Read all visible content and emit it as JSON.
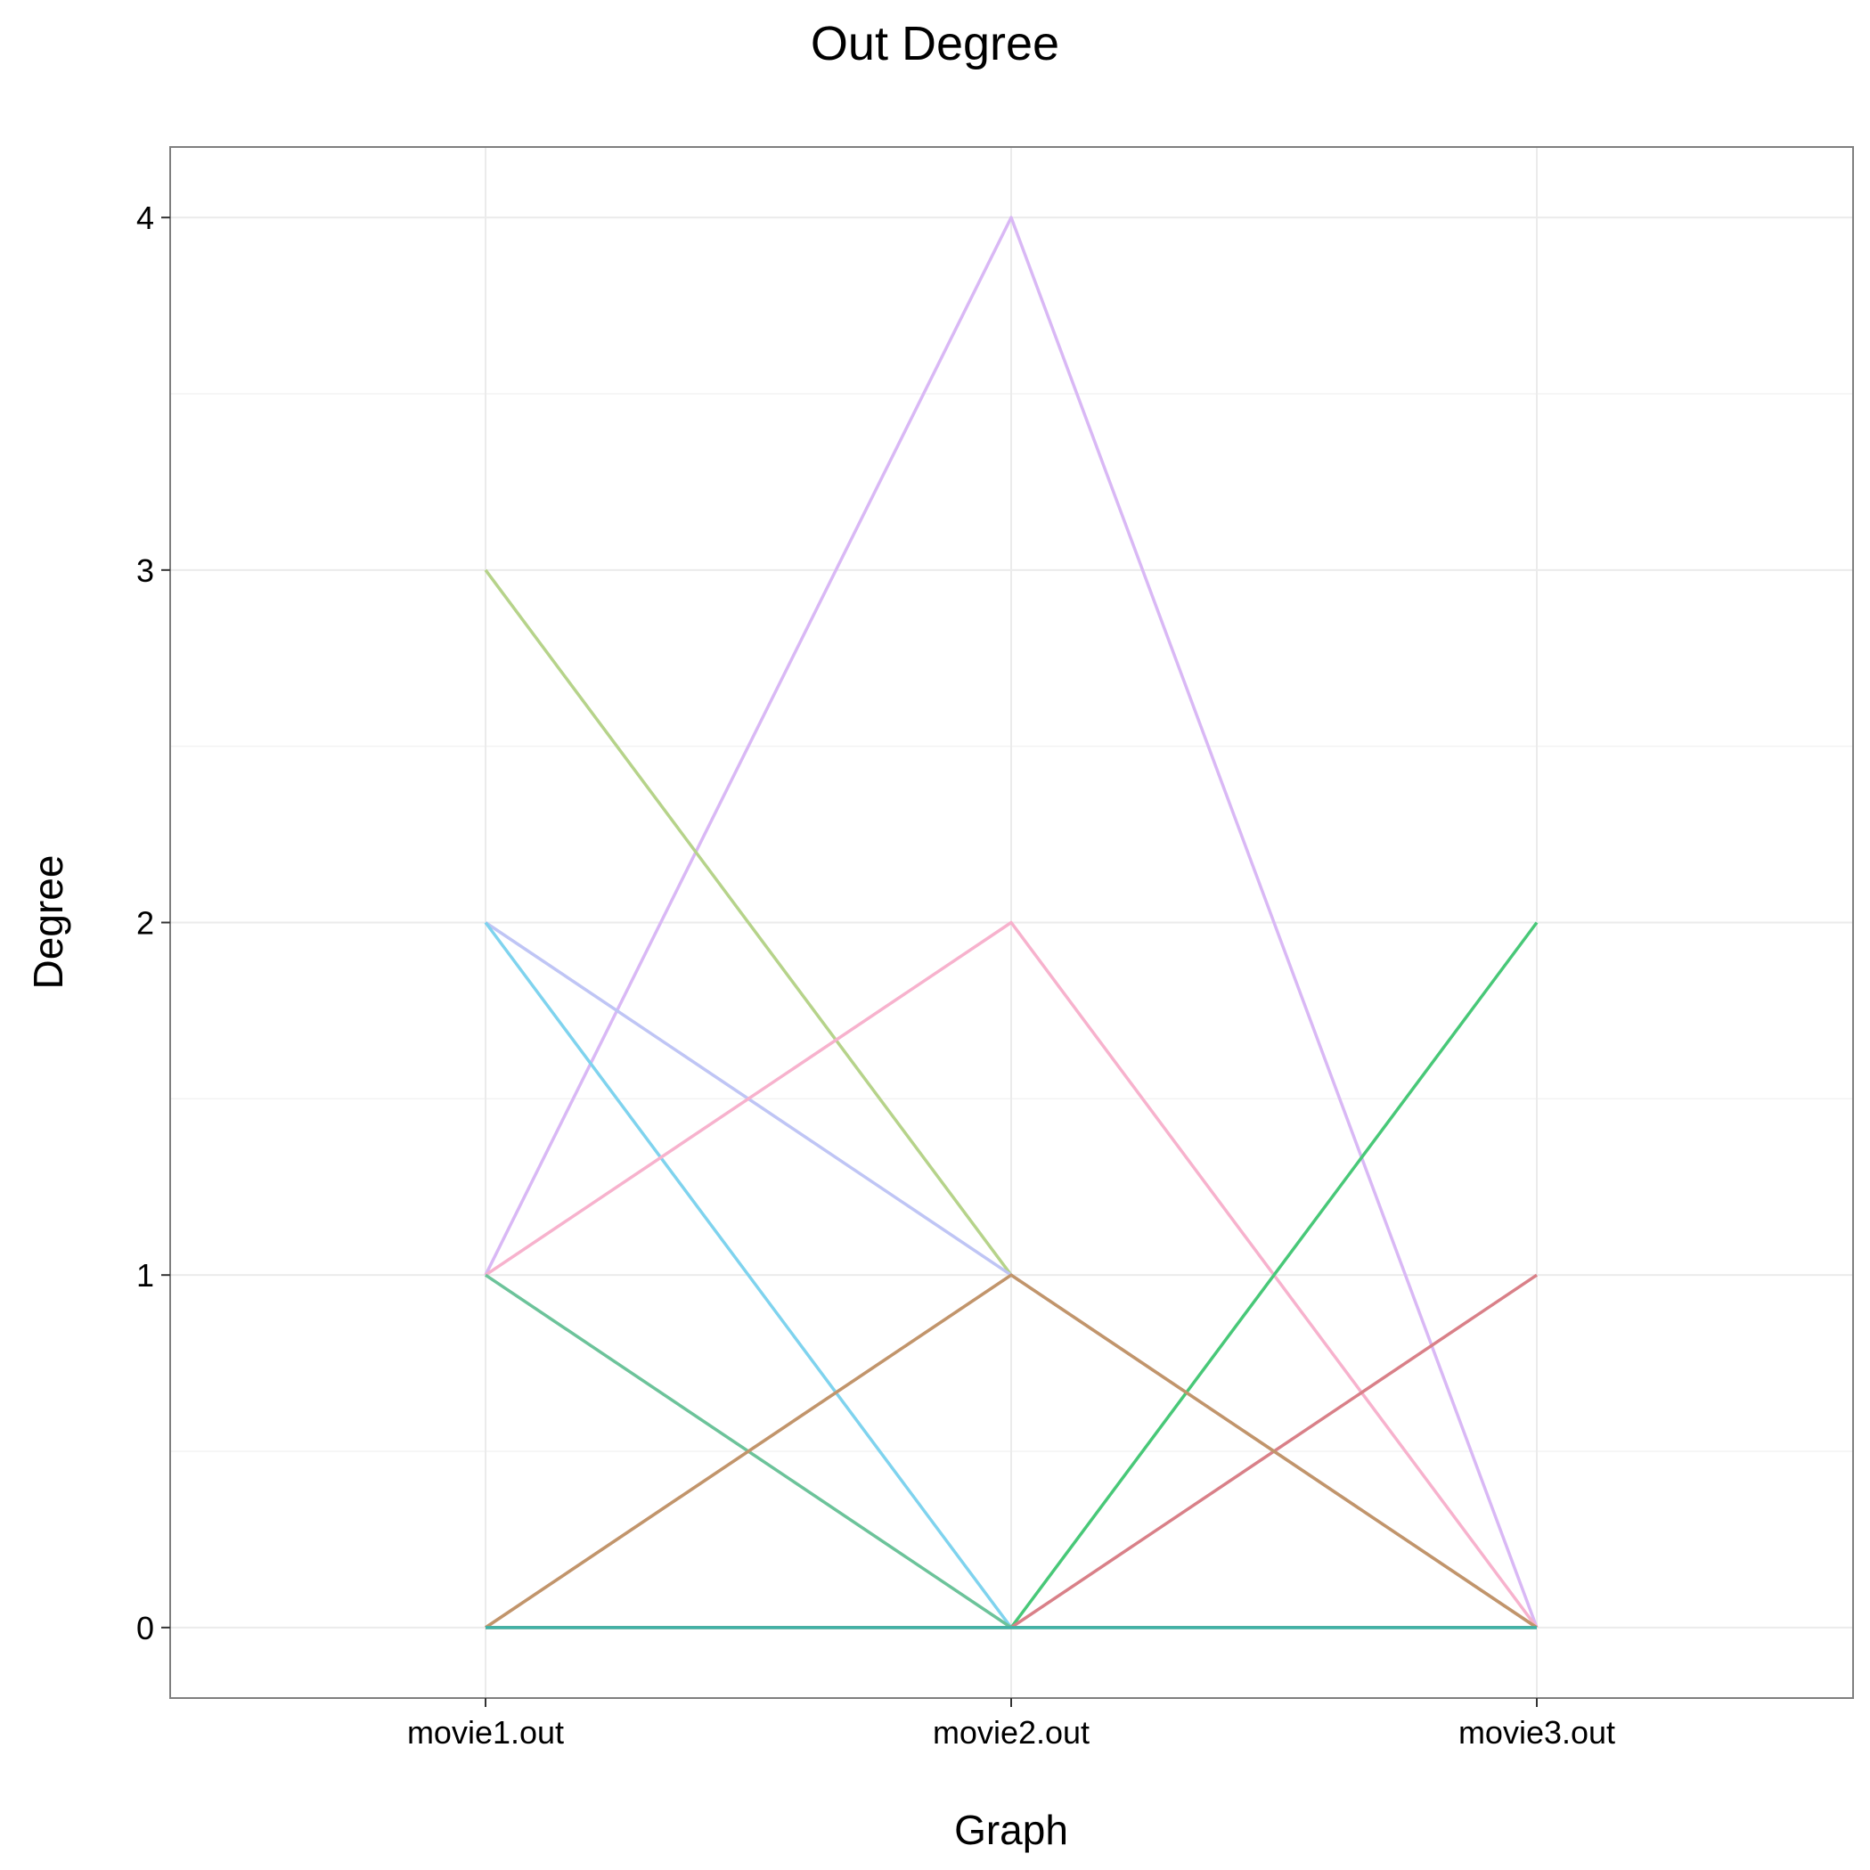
{
  "chart_data": {
    "type": "line",
    "title": "Out Degree",
    "xlabel": "Graph",
    "ylabel": "Degree",
    "categories": [
      "movie1.out",
      "movie2.out",
      "movie3.out"
    ],
    "y_ticks": [
      "0",
      "1",
      "2",
      "3",
      "4"
    ],
    "ylim": [
      -0.2,
      4.2
    ],
    "grid": true,
    "series": [
      {
        "color": "#d9b8f5",
        "values": [
          1,
          4,
          0
        ]
      },
      {
        "color": "#b6d38a",
        "values": [
          3,
          1,
          0
        ]
      },
      {
        "color": "#bfc5f5",
        "values": [
          2,
          1,
          0
        ]
      },
      {
        "color": "#7fd3ee",
        "values": [
          2,
          0,
          0
        ]
      },
      {
        "color": "#f7b2cd",
        "values": [
          1,
          2,
          0
        ]
      },
      {
        "color": "#f5b8b3",
        "values": [
          0,
          1,
          0
        ]
      },
      {
        "color": "#6cc39a",
        "values": [
          1,
          0,
          0
        ]
      },
      {
        "color": "#48c878",
        "values": [
          0,
          0,
          2
        ]
      },
      {
        "color": "#d98088",
        "values": [
          0,
          0,
          1
        ]
      },
      {
        "color": "#b59964",
        "values": [
          0,
          0,
          0
        ]
      },
      {
        "color": "#c1956b",
        "values": [
          0,
          1,
          0
        ]
      },
      {
        "color": "#3fb2a8",
        "values": [
          0,
          0,
          0
        ]
      }
    ]
  }
}
